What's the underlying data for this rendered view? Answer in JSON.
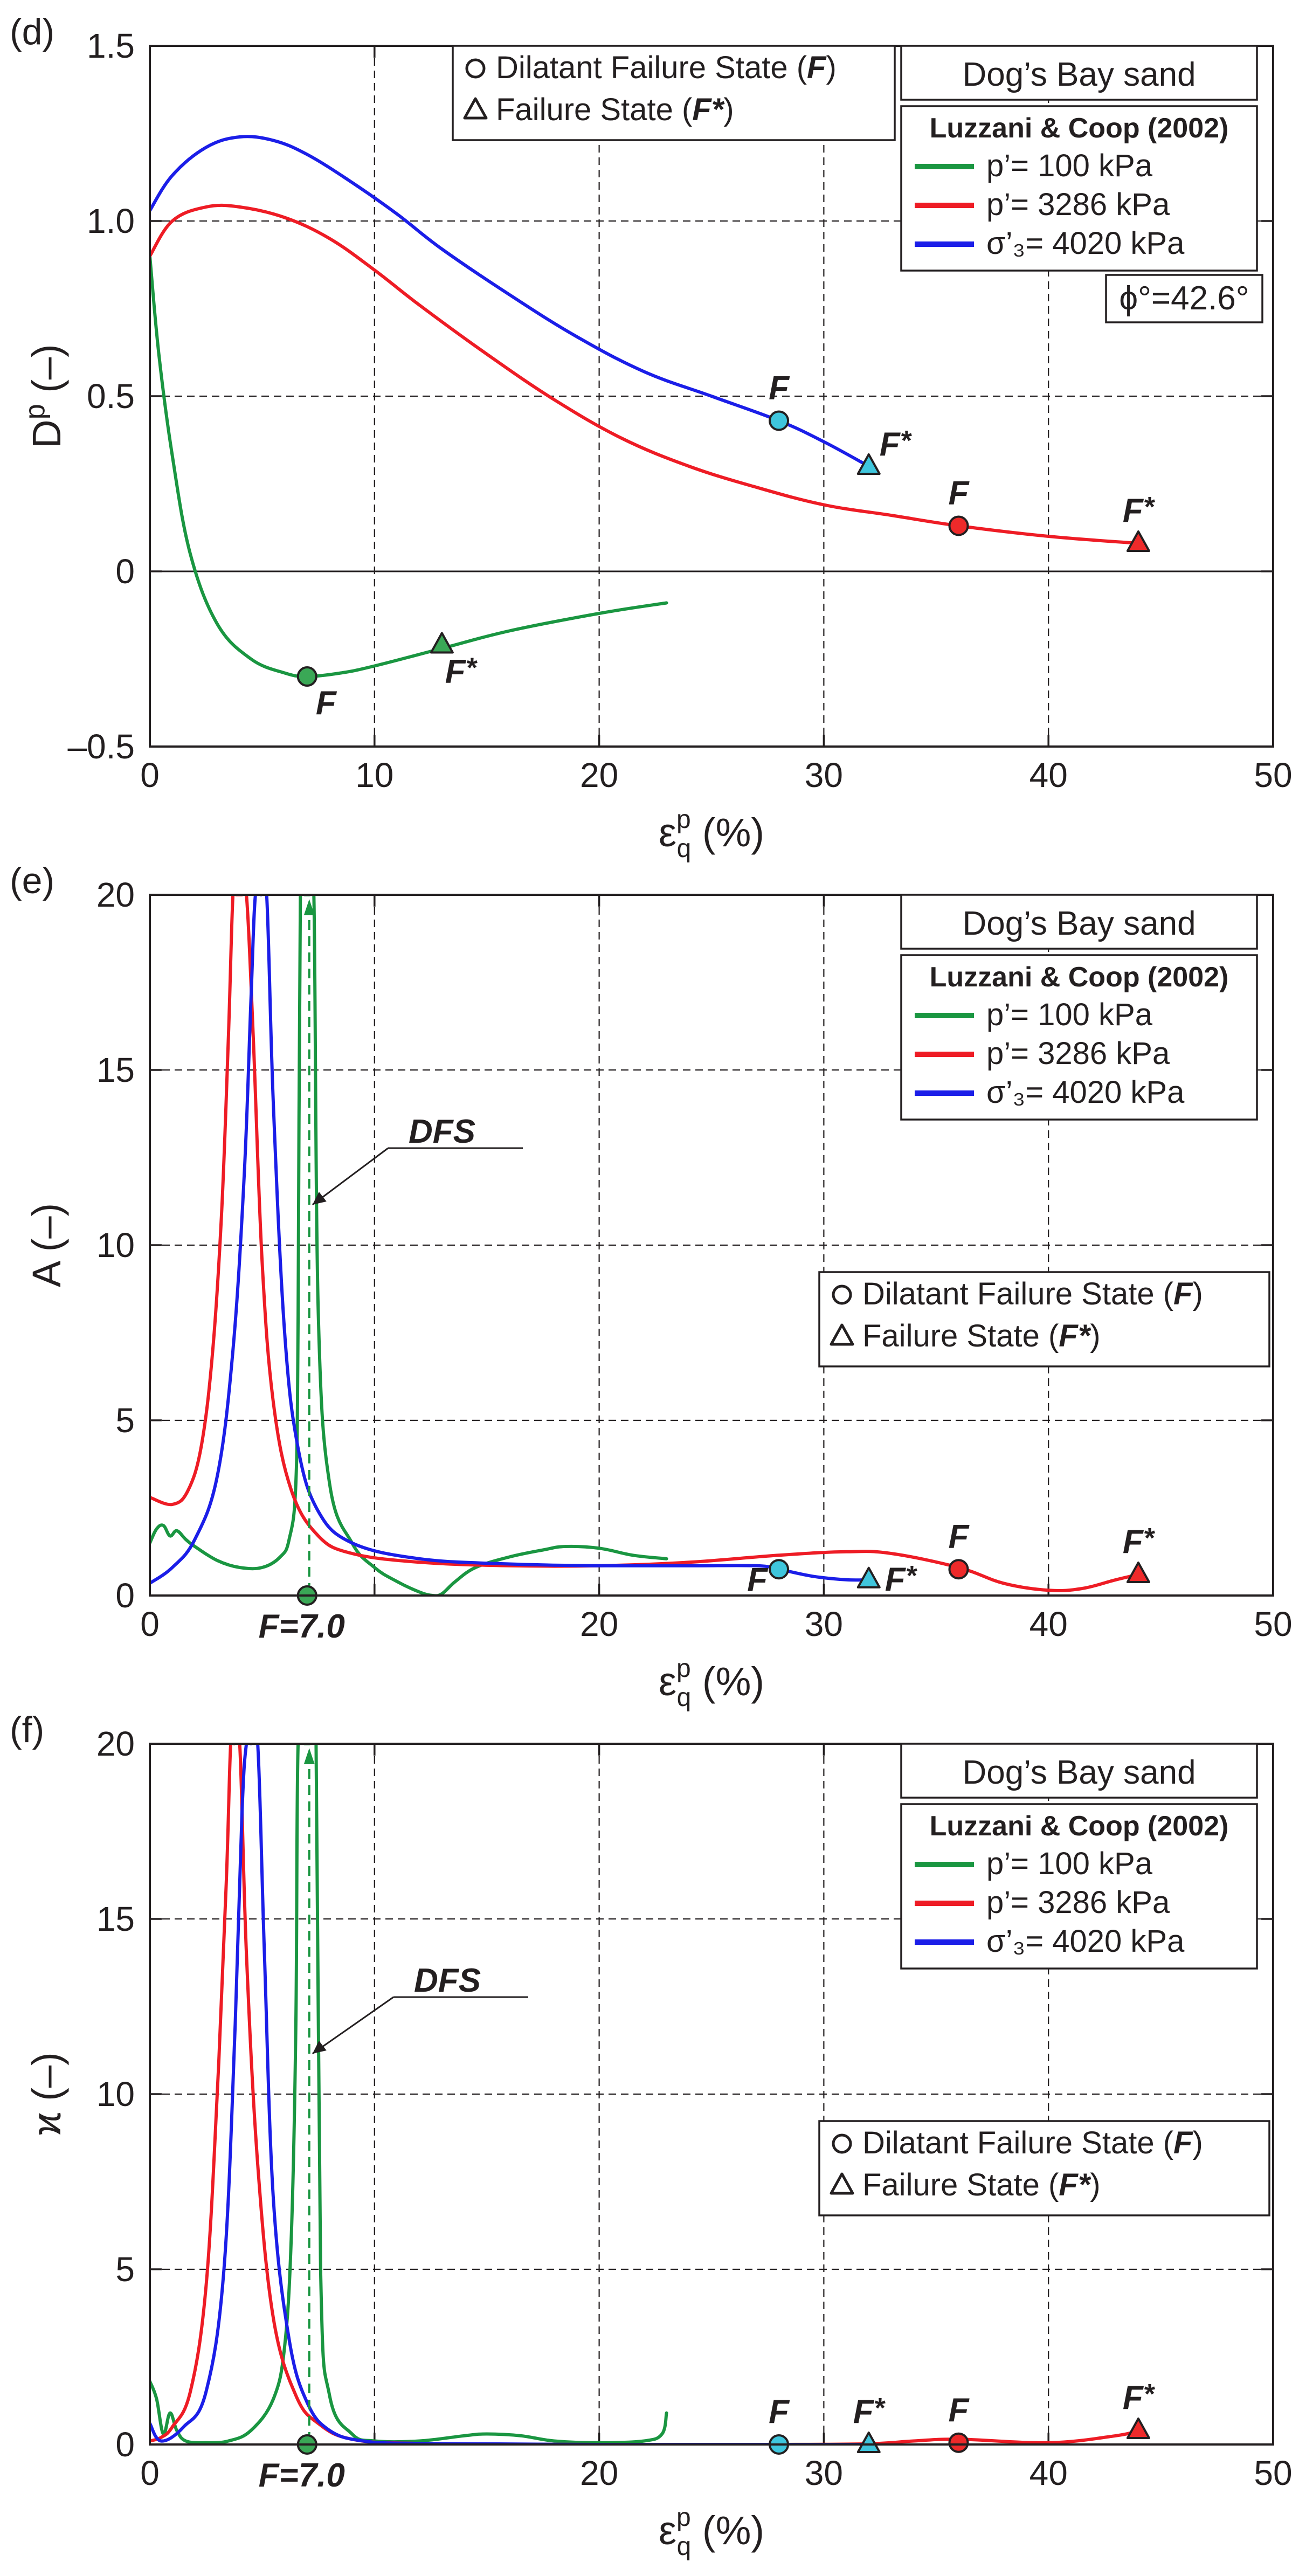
{
  "chart_data": [
    {
      "type": "line",
      "panel_label": "(d)",
      "ylabel_main": "D",
      "ylabel_sup": "p",
      "ylabel_unit": "(–)",
      "xlabel_sym": "ε",
      "xlabel_sup": "p",
      "xlabel_sub": "q",
      "xlabel_unit": "(%)",
      "xlim": [
        0,
        50
      ],
      "ylim": [
        -0.5,
        1.5
      ],
      "xticks": [
        0,
        10,
        20,
        30,
        40,
        50
      ],
      "yticks": [
        -0.5,
        0,
        0.5,
        1.0,
        1.5
      ],
      "ytick_labels": [
        "–0.5",
        "0",
        "0.5",
        "1.0",
        "1.5"
      ],
      "zero_line": true,
      "title": "Dog’s Bay sand",
      "legend_header": "Luzzani & Coop (2002)",
      "markers_legend": [
        {
          "symbol": "circle",
          "prefix": "Dilatant Failure State (",
          "letter": "F",
          "suffix": ")"
        },
        {
          "symbol": "triangle",
          "prefix": "Failure State (",
          "letter": "F*",
          "suffix": ")"
        }
      ],
      "annotation": "ϕ°=42.6°",
      "series": [
        {
          "name": "p’= 100 kPa",
          "color": "#1a9641",
          "x": [
            0,
            0.4,
            1,
            1.8,
            3,
            4.5,
            6,
            7,
            8.5,
            10,
            13,
            16,
            20,
            23
          ],
          "y": [
            0.9,
            0.62,
            0.33,
            0.05,
            -0.15,
            -0.25,
            -0.29,
            -0.3,
            -0.29,
            -0.27,
            -0.22,
            -0.17,
            -0.12,
            -0.09
          ]
        },
        {
          "name": "p’= 3286 kPa",
          "color": "#ee1c25",
          "x": [
            0,
            1,
            2.5,
            4,
            6,
            8,
            10,
            12,
            15,
            18,
            21,
            24,
            27,
            30,
            33,
            36,
            40,
            44
          ],
          "y": [
            0.9,
            1.0,
            1.04,
            1.04,
            1.01,
            0.95,
            0.86,
            0.76,
            0.62,
            0.49,
            0.38,
            0.3,
            0.24,
            0.19,
            0.16,
            0.13,
            0.1,
            0.08
          ]
        },
        {
          "name": "σ’₃= 4020 kPa",
          "color": "#1b1ee8",
          "x": [
            0,
            1,
            2.5,
            4,
            5.5,
            7,
            9,
            11,
            13,
            16,
            19,
            22,
            25,
            28,
            30,
            32
          ],
          "y": [
            1.03,
            1.13,
            1.21,
            1.24,
            1.23,
            1.19,
            1.11,
            1.02,
            0.92,
            0.79,
            0.67,
            0.57,
            0.5,
            0.43,
            0.37,
            0.3
          ]
        }
      ],
      "markers": [
        {
          "series": 0,
          "shape": "circle",
          "x": 7,
          "y": -0.3,
          "label": "F"
        },
        {
          "series": 0,
          "shape": "triangle",
          "x": 13,
          "y": -0.21,
          "label": "F*"
        },
        {
          "series": 2,
          "shape": "circle",
          "x": 28,
          "y": 0.43,
          "label": "F"
        },
        {
          "series": 2,
          "shape": "triangle",
          "x": 32,
          "y": 0.3,
          "label": "F*"
        },
        {
          "series": 1,
          "shape": "circle",
          "x": 36,
          "y": 0.13,
          "label": "F"
        },
        {
          "series": 1,
          "shape": "triangle",
          "x": 44,
          "y": 0.08,
          "label": "F*"
        }
      ]
    },
    {
      "type": "line",
      "panel_label": "(e)",
      "ylabel_main": "A",
      "ylabel_sup": "",
      "ylabel_unit": "(–)",
      "xlabel_sym": "ε",
      "xlabel_sup": "p",
      "xlabel_sub": "q",
      "xlabel_unit": "(%)",
      "xlim": [
        0,
        50
      ],
      "ylim": [
        0,
        20
      ],
      "xticks": [
        0,
        10,
        20,
        30,
        40,
        50
      ],
      "xtick_labels": [
        "0",
        "",
        "20",
        "30",
        "40",
        "50"
      ],
      "yticks": [
        0,
        5,
        10,
        15,
        20
      ],
      "ytick_labels": [
        "0",
        "5",
        "10",
        "15",
        "20"
      ],
      "zero_line": false,
      "title": "Dog’s Bay sand",
      "legend_header": "Luzzani & Coop (2002)",
      "markers_legend": [
        {
          "symbol": "circle",
          "prefix": "Dilatant Failure State (",
          "letter": "F",
          "suffix": ")"
        },
        {
          "symbol": "triangle",
          "prefix": "Failure State (",
          "letter": "F*",
          "suffix": ")"
        }
      ],
      "dfs_label": "DFS",
      "dfs_x": 7.0,
      "f_value_label": "F=7.0",
      "series": [
        {
          "name": "p’= 100 kPa",
          "color": "#1a9641",
          "x": [
            0,
            0.3,
            0.6,
            0.9,
            1.2,
            1.6,
            2,
            3,
            4,
            5,
            5.8,
            6.2,
            6.5,
            6.6,
            6.7,
            6.9,
            7.1,
            7.3,
            7.5,
            8,
            9,
            10,
            11,
            12,
            12.6,
            13,
            13.6,
            14.5,
            16,
            17.5,
            18.5,
            20,
            21.5,
            23
          ],
          "y": [
            1.5,
            1.9,
            2.0,
            1.7,
            1.85,
            1.6,
            1.4,
            1.0,
            0.8,
            0.8,
            1.1,
            1.6,
            3.2,
            8,
            20,
            20,
            20,
            20,
            8,
            3.2,
            1.5,
            0.8,
            0.4,
            0.1,
            0.0,
            0.05,
            0.4,
            0.8,
            1.1,
            1.3,
            1.4,
            1.35,
            1.15,
            1.05
          ]
        },
        {
          "name": "p’= 3286 kPa",
          "color": "#ee1c25",
          "x": [
            0,
            1,
            1.7,
            2.3,
            2.8,
            3.2,
            3.5,
            3.7,
            3.85,
            4.1,
            4.3,
            4.6,
            5,
            5.5,
            6.3,
            7.5,
            9,
            12,
            16,
            20,
            24,
            28,
            31,
            33,
            36,
            38,
            40,
            41.5,
            43,
            44
          ],
          "y": [
            2.8,
            2.6,
            3.0,
            4.3,
            7,
            11,
            16,
            20,
            20,
            20,
            20,
            16,
            9.5,
            5.5,
            3.0,
            1.7,
            1.2,
            0.95,
            0.85,
            0.85,
            0.95,
            1.15,
            1.25,
            1.2,
            0.8,
            0.35,
            0.15,
            0.2,
            0.45,
            0.6
          ]
        },
        {
          "name": "σ’₃= 4020 kPa",
          "color": "#1b1ee8",
          "x": [
            0,
            1,
            2,
            3,
            3.7,
            4.2,
            4.5,
            4.7,
            4.95,
            5.2,
            5.5,
            6,
            6.6,
            7.5,
            9,
            12,
            16,
            20,
            24,
            27,
            28,
            29.5,
            31,
            32
          ],
          "y": [
            0.35,
            0.8,
            1.6,
            3.4,
            7,
            12,
            17,
            20,
            20,
            20,
            14,
            7.5,
            4.2,
            2.4,
            1.5,
            1.05,
            0.9,
            0.85,
            0.85,
            0.85,
            0.75,
            0.55,
            0.45,
            0.45
          ]
        }
      ],
      "markers": [
        {
          "series": 0,
          "shape": "circle",
          "x": 7,
          "y": 0,
          "label": ""
        },
        {
          "series": 2,
          "shape": "circle",
          "x": 28,
          "y": 0.75,
          "label": "F"
        },
        {
          "series": 2,
          "shape": "triangle",
          "x": 32,
          "y": 0.45,
          "label": "F*"
        },
        {
          "series": 1,
          "shape": "circle",
          "x": 36,
          "y": 0.75,
          "label": "F"
        },
        {
          "series": 1,
          "shape": "triangle",
          "x": 44,
          "y": 0.6,
          "label": "F*"
        }
      ]
    },
    {
      "type": "line",
      "panel_label": "(f)",
      "ylabel_main": "ϰ",
      "ylabel_sup": "",
      "ylabel_unit": "(–)",
      "xlabel_sym": "ε",
      "xlabel_sup": "p",
      "xlabel_sub": "q",
      "xlabel_unit": "(%)",
      "xlim": [
        0,
        50
      ],
      "ylim": [
        0,
        20
      ],
      "xticks": [
        0,
        10,
        20,
        30,
        40,
        50
      ],
      "xtick_labels": [
        "0",
        "",
        "20",
        "30",
        "40",
        "50"
      ],
      "yticks": [
        0,
        5,
        10,
        15,
        20
      ],
      "ytick_labels": [
        "0",
        "5",
        "10",
        "15",
        "20"
      ],
      "zero_line": false,
      "title": "Dog’s Bay sand",
      "legend_header": "Luzzani & Coop (2002)",
      "markers_legend": [
        {
          "symbol": "circle",
          "prefix": "Dilatant Failure State (",
          "letter": "F",
          "suffix": ")"
        },
        {
          "symbol": "triangle",
          "prefix": "Failure State (",
          "letter": "F*",
          "suffix": ")"
        }
      ],
      "dfs_label": "DFS",
      "dfs_x": 7.0,
      "f_value_label": "F=7.0",
      "series": [
        {
          "name": "p’= 100 kPa",
          "color": "#1a9641",
          "x": [
            0,
            0.3,
            0.6,
            0.9,
            1.2,
            1.6,
            2.5,
            3.5,
            4.5,
            5.5,
            6.0,
            6.3,
            6.5,
            6.6,
            6.9,
            7.1,
            7.4,
            7.6,
            8,
            9,
            10,
            12,
            14,
            15,
            16.5,
            18,
            20,
            22,
            22.8,
            23
          ],
          "y": [
            1.8,
            1.3,
            0.3,
            0.9,
            0.4,
            0.1,
            0.05,
            0.1,
            0.4,
            1.3,
            2.8,
            6,
            12,
            20,
            20,
            20,
            20,
            5,
            1.4,
            0.3,
            0.1,
            0.1,
            0.25,
            0.3,
            0.25,
            0.1,
            0.05,
            0.1,
            0.3,
            0.9
          ]
        },
        {
          "name": "p’= 3286 kPa",
          "color": "#ee1c25",
          "x": [
            0,
            0.5,
            1,
            1.8,
            2.5,
            3.0,
            3.4,
            3.6,
            3.75,
            4.0,
            4.3,
            4.8,
            5.5,
            6.5,
            7.5,
            9,
            12,
            20,
            28,
            32,
            34,
            36,
            40,
            43,
            44
          ],
          "y": [
            0.1,
            0.2,
            0.5,
            1.5,
            4.5,
            10,
            16,
            20,
            20,
            20,
            14,
            8,
            3.6,
            1.4,
            0.6,
            0.15,
            0.03,
            0.0,
            0.0,
            0.02,
            0.1,
            0.15,
            0.05,
            0.25,
            0.4
          ]
        },
        {
          "name": "σ’₃= 4020 kPa",
          "color": "#1b1ee8",
          "x": [
            0,
            0.5,
            1.5,
            2.5,
            3.3,
            3.8,
            4.1,
            4.3,
            4.5,
            4.8,
            5.1,
            5.5,
            6.2,
            7,
            8,
            9.5,
            12,
            20,
            28,
            32
          ],
          "y": [
            0.6,
            0.1,
            0.5,
            1.5,
            5,
            12,
            18,
            20,
            20,
            20,
            14,
            7,
            3,
            1.2,
            0.4,
            0.1,
            0.03,
            0.0,
            0.0,
            0.0
          ]
        }
      ],
      "markers": [
        {
          "series": 0,
          "shape": "circle",
          "x": 7,
          "y": 0,
          "label": ""
        },
        {
          "series": 2,
          "shape": "circle",
          "x": 28,
          "y": 0,
          "label": "F"
        },
        {
          "series": 2,
          "shape": "triangle",
          "x": 32,
          "y": 0,
          "label": "F*"
        },
        {
          "series": 1,
          "shape": "circle",
          "x": 36,
          "y": 0.05,
          "label": "F"
        },
        {
          "series": 1,
          "shape": "triangle",
          "x": 44,
          "y": 0.4,
          "label": "F*"
        }
      ]
    }
  ],
  "colors": {
    "marker_green": "#3aa856",
    "marker_cyan": "#3fc6dd",
    "marker_red": "#ee2a2a",
    "ink": "#231f20"
  }
}
